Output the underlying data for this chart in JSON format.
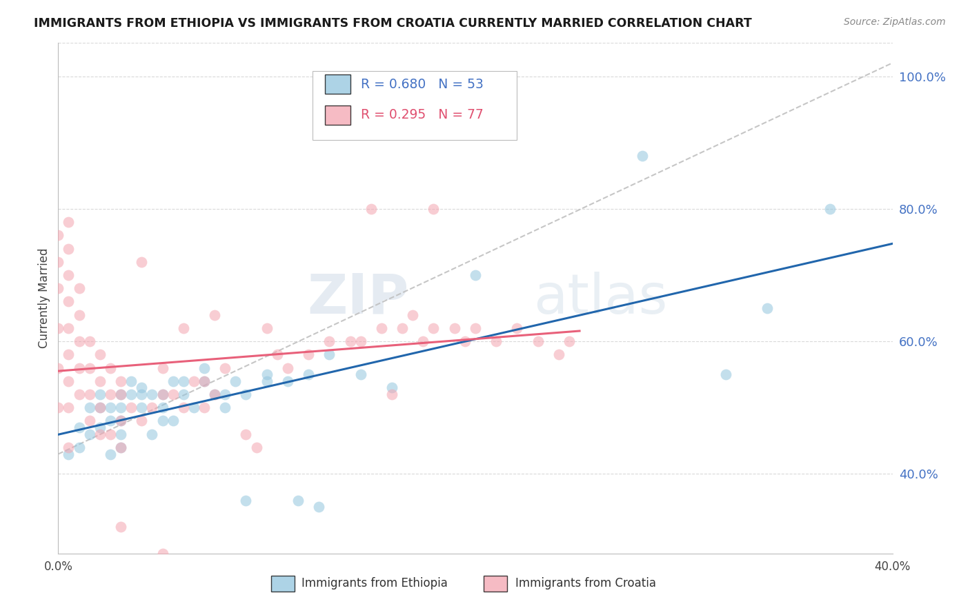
{
  "title": "IMMIGRANTS FROM ETHIOPIA VS IMMIGRANTS FROM CROATIA CURRENTLY MARRIED CORRELATION CHART",
  "source": "Source: ZipAtlas.com",
  "ylabel": "Currently Married",
  "xlim": [
    0.0,
    0.4
  ],
  "ylim": [
    0.28,
    1.05
  ],
  "x_ticks": [
    0.0,
    0.05,
    0.1,
    0.15,
    0.2,
    0.25,
    0.3,
    0.35,
    0.4
  ],
  "x_tick_labels": [
    "0.0%",
    "",
    "",
    "",
    "",
    "",
    "",
    "",
    "40.0%"
  ],
  "y_ticks_right": [
    0.4,
    0.6,
    0.8,
    1.0
  ],
  "y_tick_labels_right": [
    "40.0%",
    "60.0%",
    "80.0%",
    "100.0%"
  ],
  "color_ethiopia": "#92c5de",
  "color_croatia": "#f4a5b0",
  "color_regression_ethiopia": "#2166ac",
  "color_regression_croatia": "#e8607a",
  "color_diagonal": "#cccccc",
  "ethiopia_x": [
    0.005,
    0.01,
    0.01,
    0.015,
    0.015,
    0.02,
    0.02,
    0.02,
    0.025,
    0.025,
    0.025,
    0.03,
    0.03,
    0.03,
    0.03,
    0.03,
    0.035,
    0.035,
    0.04,
    0.04,
    0.04,
    0.045,
    0.045,
    0.05,
    0.05,
    0.05,
    0.055,
    0.055,
    0.06,
    0.06,
    0.065,
    0.07,
    0.07,
    0.075,
    0.08,
    0.08,
    0.085,
    0.09,
    0.09,
    0.1,
    0.1,
    0.11,
    0.115,
    0.12,
    0.125,
    0.13,
    0.145,
    0.16,
    0.2,
    0.28,
    0.32,
    0.34,
    0.37
  ],
  "ethiopia_y": [
    0.43,
    0.47,
    0.44,
    0.5,
    0.46,
    0.5,
    0.52,
    0.47,
    0.48,
    0.5,
    0.43,
    0.48,
    0.5,
    0.52,
    0.46,
    0.44,
    0.52,
    0.54,
    0.5,
    0.52,
    0.53,
    0.52,
    0.46,
    0.48,
    0.5,
    0.52,
    0.54,
    0.48,
    0.52,
    0.54,
    0.5,
    0.54,
    0.56,
    0.52,
    0.5,
    0.52,
    0.54,
    0.52,
    0.36,
    0.54,
    0.55,
    0.54,
    0.36,
    0.55,
    0.35,
    0.58,
    0.55,
    0.53,
    0.7,
    0.88,
    0.55,
    0.65,
    0.8
  ],
  "croatia_x": [
    0.0,
    0.0,
    0.0,
    0.0,
    0.0,
    0.0,
    0.005,
    0.005,
    0.005,
    0.005,
    0.005,
    0.005,
    0.005,
    0.005,
    0.005,
    0.01,
    0.01,
    0.01,
    0.01,
    0.01,
    0.015,
    0.015,
    0.015,
    0.015,
    0.02,
    0.02,
    0.02,
    0.02,
    0.025,
    0.025,
    0.025,
    0.03,
    0.03,
    0.03,
    0.03,
    0.035,
    0.04,
    0.04,
    0.045,
    0.05,
    0.05,
    0.055,
    0.06,
    0.06,
    0.065,
    0.07,
    0.07,
    0.075,
    0.075,
    0.08,
    0.09,
    0.095,
    0.1,
    0.105,
    0.11,
    0.12,
    0.13,
    0.14,
    0.145,
    0.15,
    0.155,
    0.16,
    0.165,
    0.17,
    0.175,
    0.18,
    0.18,
    0.19,
    0.195,
    0.2,
    0.21,
    0.22,
    0.23,
    0.24,
    0.245,
    0.05,
    0.03
  ],
  "croatia_y": [
    0.5,
    0.56,
    0.62,
    0.68,
    0.72,
    0.76,
    0.44,
    0.5,
    0.54,
    0.58,
    0.62,
    0.66,
    0.7,
    0.74,
    0.78,
    0.52,
    0.56,
    0.6,
    0.64,
    0.68,
    0.48,
    0.52,
    0.56,
    0.6,
    0.46,
    0.5,
    0.54,
    0.58,
    0.46,
    0.52,
    0.56,
    0.44,
    0.48,
    0.52,
    0.54,
    0.5,
    0.48,
    0.72,
    0.5,
    0.52,
    0.56,
    0.52,
    0.5,
    0.62,
    0.54,
    0.5,
    0.54,
    0.52,
    0.64,
    0.56,
    0.46,
    0.44,
    0.62,
    0.58,
    0.56,
    0.58,
    0.6,
    0.6,
    0.6,
    0.8,
    0.62,
    0.52,
    0.62,
    0.64,
    0.6,
    0.62,
    0.8,
    0.62,
    0.6,
    0.62,
    0.6,
    0.62,
    0.6,
    0.58,
    0.6,
    0.28,
    0.32
  ],
  "watermark_zip": "ZIP",
  "watermark_atlas": "atlas",
  "background_color": "#ffffff",
  "grid_color": "#d0d0d0"
}
